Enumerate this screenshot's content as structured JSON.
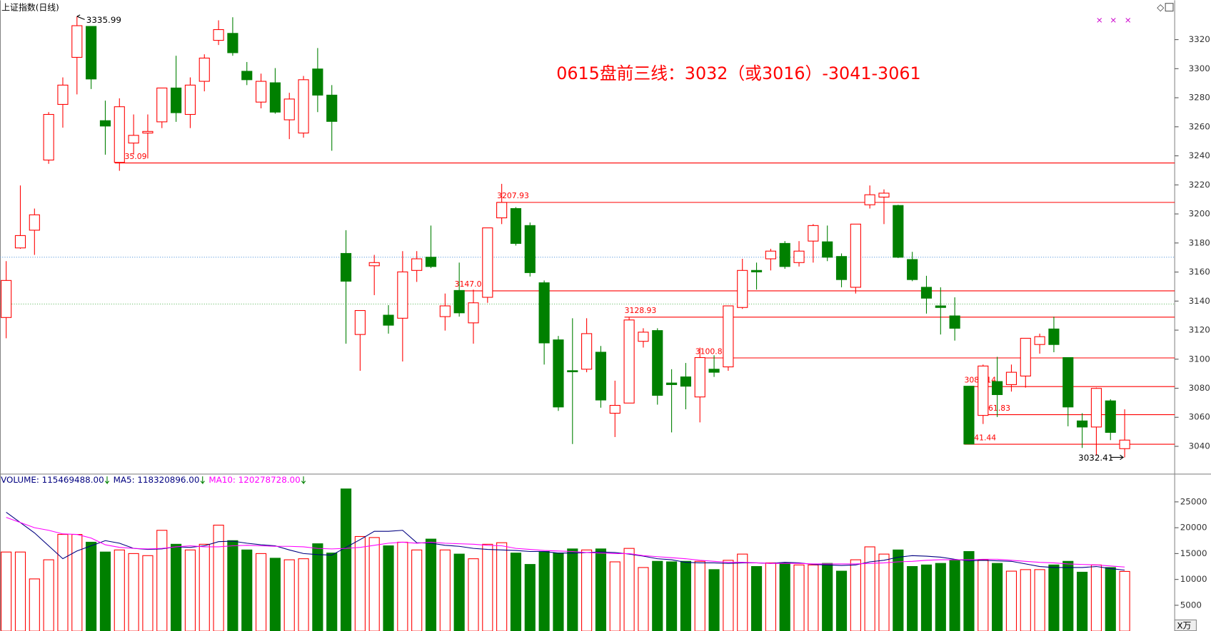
{
  "chart_data": [
    {
      "type": "candlestick",
      "title": "上证指数(日线)",
      "annotation": "0615盘前三线：3032（或3016）-3041-3061",
      "up_color": "#ff0000",
      "down_color": "#008000",
      "annotation_color": "#ff0000",
      "ylim": [
        3020.9,
        3347.1
      ],
      "yticks": [
        3040,
        3060,
        3080,
        3100,
        3120,
        3140,
        3160,
        3180,
        3200,
        3220,
        3240,
        3260,
        3280,
        3300,
        3320
      ],
      "open": [
        3128.7,
        3176.6,
        3188.8,
        3237.1,
        3275.4,
        3307.8,
        3329.1,
        3264.2,
        3235.5,
        3248.8,
        3255.7,
        3263.4,
        3286.7,
        3268.5,
        3291.3,
        3319.5,
        3324.3,
        3298.2,
        3277,
        3290.3,
        3264.8,
        3255.7,
        3299.8,
        3281.8,
        3172.8,
        3117,
        3164.3,
        3130.3,
        3128.2,
        3161.1,
        3170.2,
        3129.3,
        3147.3,
        3125,
        3142.6,
        3197.3,
        3203.7,
        3192,
        3152.6,
        3113.3,
        3092.1,
        3093.1,
        3104.8,
        3062.8,
        3069.8,
        3112.3,
        3119.7,
        3083.6,
        3087.8,
        3074,
        3093.1,
        3094.7,
        3135.6,
        3161.1,
        3169.1,
        3179.7,
        3166.5,
        3181.3,
        3180.8,
        3170.7,
        3149.5,
        3206.3,
        3211.6,
        3205.8,
        3168.6,
        3149.5,
        3136.7,
        3129.8,
        3081.4,
        3061.3,
        3084.6,
        3082.5,
        3088.4,
        3110.1,
        3120.8,
        3101.1,
        3057.5,
        3053.3,
        3071.3,
        3038.4
      ],
      "high": [
        3167.5,
        3219.6,
        3203.7,
        3270.1,
        3294,
        3335.99,
        3329.1,
        3278,
        3279.6,
        3268.5,
        3268.5,
        3286.7,
        3308.9,
        3294,
        3309.9,
        3333.3,
        3335.4,
        3304.6,
        3296.6,
        3300.4,
        3283.4,
        3295,
        3314.2,
        3288.7,
        3188.8,
        3133.5,
        3171.8,
        3137.2,
        3174.4,
        3174.4,
        3192,
        3145.2,
        3166.5,
        3147.9,
        3190.4,
        3220.7,
        3204.7,
        3194.1,
        3154.2,
        3116,
        3128.2,
        3128.2,
        3109.1,
        3085.2,
        3128.93,
        3121.3,
        3121.3,
        3093.1,
        3097.4,
        3108,
        3102.7,
        3136.7,
        3169.1,
        3166.5,
        3176,
        3181.3,
        3181.3,
        3193,
        3192,
        3172.8,
        3193,
        3219.6,
        3216.9,
        3206.3,
        3173.9,
        3157.4,
        3149.5,
        3142.6,
        3081.4,
        3096.3,
        3101.6,
        3096.3,
        3114.4,
        3117.6,
        3129.3,
        3101.1,
        3062.8,
        3080.4,
        3072.4,
        3065.5
      ],
      "low": [
        3114.4,
        3176,
        3171.8,
        3234.5,
        3259.4,
        3282.3,
        3286,
        3240.8,
        3229.7,
        3240.8,
        3238.2,
        3259.1,
        3263.4,
        3259.1,
        3284.4,
        3316.3,
        3308.9,
        3288.7,
        3272.7,
        3269,
        3251.5,
        3252.5,
        3270.1,
        3243.5,
        3110.7,
        3092,
        3144.1,
        3117.6,
        3098.4,
        3153.2,
        3162.7,
        3119.7,
        3129.3,
        3110.7,
        3138.8,
        3193,
        3178.2,
        3156.9,
        3096.3,
        3064.4,
        3041.6,
        3091,
        3066.6,
        3046.4,
        3069.8,
        3108,
        3068.7,
        3049.6,
        3065.5,
        3056.5,
        3087.8,
        3092,
        3134.6,
        3147.9,
        3161.1,
        3162.2,
        3163.8,
        3166.5,
        3167.5,
        3149.5,
        3145.2,
        3203.7,
        3193,
        3169.6,
        3153.7,
        3131.4,
        3117,
        3112.8,
        3041.4,
        3055.4,
        3060.2,
        3077.7,
        3080.4,
        3103.8,
        3104.8,
        3053.8,
        3038.9,
        3033.6,
        3044.3,
        3032.41
      ],
      "close": [
        3154.2,
        3185.1,
        3199.4,
        3268.5,
        3288.7,
        3329.6,
        3292.9,
        3260.5,
        3273.8,
        3254.1,
        3256.8,
        3286.7,
        3269.7,
        3288.7,
        3307.3,
        3326.9,
        3311,
        3292.4,
        3291.3,
        3270.1,
        3279.1,
        3292.4,
        3281.8,
        3263.7,
        3153.7,
        3133.5,
        3166.5,
        3123.4,
        3160.1,
        3169.1,
        3163.8,
        3136.7,
        3131.9,
        3138.8,
        3190.4,
        3207.93,
        3179.7,
        3159.6,
        3111.2,
        3067.1,
        3091.5,
        3117.6,
        3071.9,
        3068.2,
        3127,
        3118.6,
        3075.1,
        3082.5,
        3081.4,
        3101.1,
        3091,
        3136.7,
        3161.1,
        3160.1,
        3174.4,
        3163.8,
        3174.4,
        3192,
        3170.2,
        3154.8,
        3193,
        3213.2,
        3214.3,
        3170.2,
        3154.8,
        3142,
        3135.6,
        3121.3,
        3041.6,
        3095.3,
        3075.6,
        3091,
        3114.4,
        3115.5,
        3110.1,
        3067.1,
        3053.3,
        3079.9,
        3049.6,
        3044.3
      ],
      "reference_lines": [
        {
          "value": 3235.09,
          "color": "#ff0000"
        },
        {
          "value": 3207.93,
          "color": "#ff0000"
        },
        {
          "value": 3147.05,
          "color": "#ff0000"
        },
        {
          "value": 3128.93,
          "color": "#ff0000"
        },
        {
          "value": 3100.86,
          "color": "#ff0000"
        },
        {
          "value": 3081.14,
          "color": "#ff0000"
        },
        {
          "value": 3061.83,
          "color": "#ff0000"
        },
        {
          "value": 3041.44,
          "color": "#ff0000"
        }
      ],
      "guide_lines": [
        {
          "value": 3170.2,
          "color": "#4a90d9"
        },
        {
          "value": 3138,
          "color": "#5cb85c"
        }
      ]
    },
    {
      "type": "bar",
      "unit": "X万",
      "ylim": [
        0,
        30075
      ],
      "yticks": [
        5000,
        10000,
        15000,
        20000,
        25000
      ],
      "series": [
        {
          "name": "VOLUME: 115469488.00",
          "color": "#000080",
          "up_color": "#ff0000",
          "down_color": "#008000",
          "values": [
            15300,
            15300,
            10100,
            13800,
            18700,
            18700,
            17200,
            15300,
            15700,
            15000,
            14600,
            19500,
            16800,
            15700,
            16800,
            20500,
            17500,
            15700,
            15000,
            14100,
            13800,
            14000,
            16900,
            15100,
            27500,
            18300,
            18100,
            16500,
            17200,
            15700,
            17800,
            15700,
            14900,
            14000,
            16800,
            17100,
            15100,
            12900,
            15400,
            15100,
            15900,
            15700,
            15900,
            13400,
            16000,
            12300,
            13500,
            13400,
            13500,
            13500,
            11900,
            13700,
            14900,
            12500,
            13200,
            13200,
            12800,
            12800,
            13100,
            11600,
            13800,
            16300,
            14900,
            15700,
            12500,
            12800,
            13100,
            13700,
            15400,
            13800,
            13100,
            11600,
            11900,
            11900,
            12800,
            13500,
            11400,
            12800,
            12300,
            11547
          ]
        },
        {
          "name": "MA5: 118320896.00",
          "color": "#000080",
          "values": [
            23000,
            21000,
            19000,
            16500,
            14000,
            15500,
            16500,
            17500,
            17000,
            16000,
            15800,
            15900,
            16300,
            16200,
            16500,
            17300,
            17400,
            17000,
            16700,
            16500,
            15700,
            15000,
            14800,
            14700,
            16200,
            17700,
            19300,
            19300,
            19500,
            17100,
            17000,
            16600,
            16400,
            16000,
            15800,
            15700,
            15600,
            15400,
            15400,
            15100,
            15100,
            15200,
            15300,
            15200,
            14900,
            14500,
            14000,
            13800,
            13300,
            13200,
            13200,
            13100,
            13200,
            13200,
            13100,
            13300,
            13200,
            12900,
            12800,
            12700,
            12800,
            13400,
            13700,
            14300,
            14600,
            14500,
            14300,
            13900,
            13600,
            13700,
            13600,
            13500,
            13000,
            12500,
            12300,
            12300,
            12300,
            12500,
            12100,
            11800
          ]
        },
        {
          "name": "MA10: 120278728.00",
          "color": "#ff00ff",
          "values": [
            22000,
            21000,
            20000,
            19500,
            18800,
            18700,
            18000,
            16700,
            16200,
            16000,
            15900,
            16000,
            16300,
            16500,
            16300,
            16300,
            16500,
            16600,
            16500,
            16400,
            16400,
            16300,
            16000,
            15900,
            16000,
            16200,
            16600,
            17000,
            17200,
            17000,
            17200,
            17000,
            16900,
            16800,
            16600,
            16500,
            16000,
            15800,
            15600,
            15500,
            15400,
            15200,
            15100,
            15000,
            15000,
            14600,
            14400,
            14200,
            14000,
            13700,
            13500,
            13300,
            13300,
            13200,
            13100,
            13100,
            13100,
            13000,
            13000,
            13000,
            13000,
            13100,
            13200,
            13400,
            13500,
            13700,
            13800,
            13800,
            13800,
            13900,
            13900,
            13700,
            13500,
            13300,
            13200,
            13000,
            12900,
            12800,
            12600,
            12400
          ]
        }
      ]
    }
  ]
}
